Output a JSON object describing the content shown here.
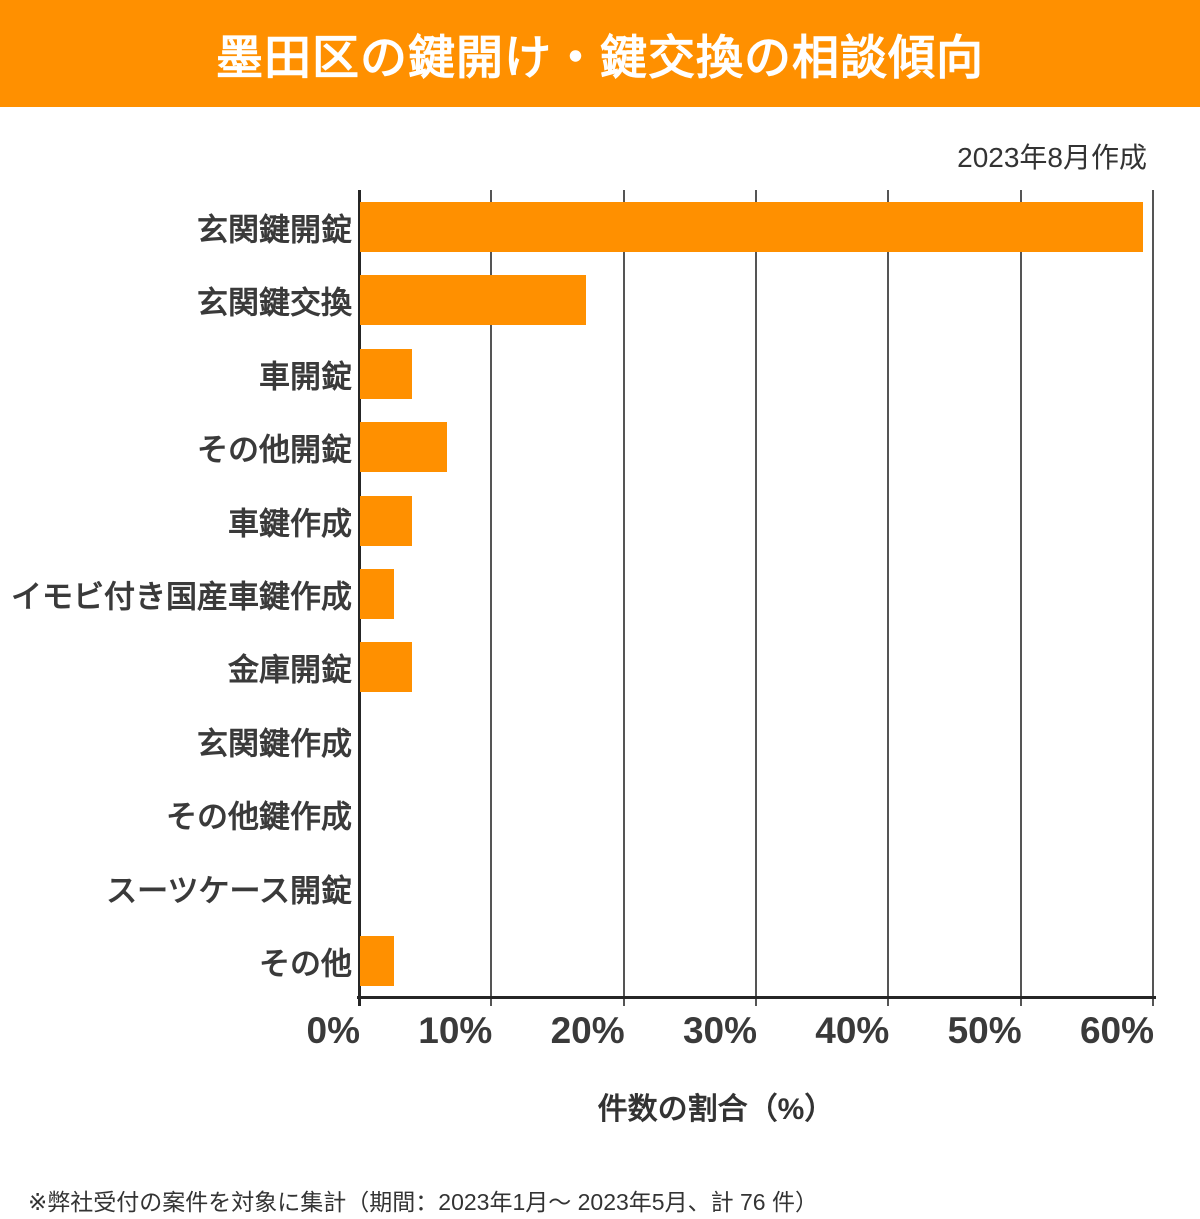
{
  "header": {
    "title": "墨田区の鍵開け・鍵交換の相談傾向",
    "created_note": "2023年8月作成"
  },
  "footer": {
    "note": "※弊社受付の案件を対象に集計（期間：2023年1月～ 2023年5月、計 76 件）"
  },
  "colors": {
    "accent_orange": "#FF9000",
    "label_dark": "#3A3A3A",
    "grid_line": "#555555",
    "axis_line": "#262626",
    "title_text": "#FFFFFF"
  },
  "chart_data": {
    "type": "bar",
    "orientation": "horizontal",
    "title": "墨田区の鍵開け・鍵交換の相談傾向",
    "categories": [
      "玄関鍵開錠",
      "玄関鍵交換",
      "車開錠",
      "その他開錠",
      "車鍵作成",
      "イモビ付き国産車鍵作成",
      "金庫開錠",
      "玄関鍵作成",
      "その他鍵作成",
      "スーツケース開錠",
      "その他"
    ],
    "values": [
      59.2,
      17.1,
      3.9,
      6.6,
      3.9,
      2.6,
      3.9,
      0,
      0,
      0,
      2.6
    ],
    "xlabel": "件数の割合（%）",
    "ylabel": "",
    "xlim": [
      0,
      60
    ],
    "xticks": [
      "0%",
      "10%",
      "20%",
      "30%",
      "40%",
      "50%",
      "60%"
    ],
    "grid": true,
    "bar_color": "#FF9000"
  }
}
